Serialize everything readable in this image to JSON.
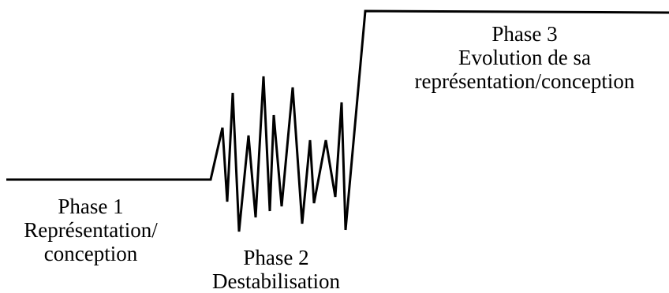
{
  "diagram": {
    "line_color": "#000000",
    "phases": [
      {
        "title": "Phase 1",
        "lines": [
          "Représentation/",
          "conception"
        ]
      },
      {
        "title": "Phase 2",
        "lines": [
          "Destabilisation"
        ]
      },
      {
        "title": "Phase 3",
        "lines": [
          "Evolution de sa",
          "représentation/conception"
        ]
      }
    ]
  }
}
